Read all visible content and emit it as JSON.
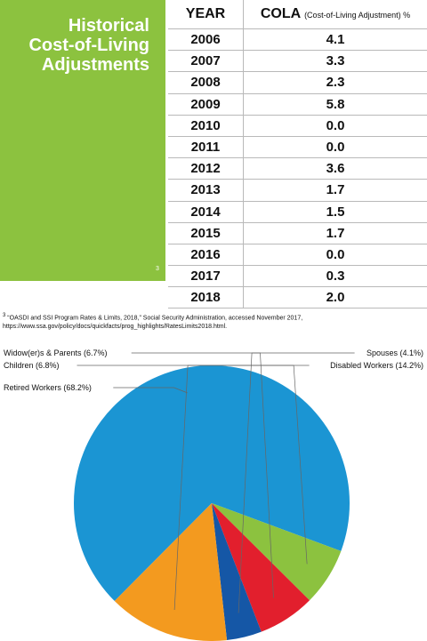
{
  "panel": {
    "title": "Historical\nCost-of-Living\nAdjustments",
    "footnote_marker": "3"
  },
  "table": {
    "headers": {
      "year": "YEAR",
      "cola": "COLA",
      "cola_sub": "(Cost-of-Living Adjustment) %"
    },
    "rows": [
      [
        "2006",
        "4.1"
      ],
      [
        "2007",
        "3.3"
      ],
      [
        "2008",
        "2.3"
      ],
      [
        "2009",
        "5.8"
      ],
      [
        "2010",
        "0.0"
      ],
      [
        "2011",
        "0.0"
      ],
      [
        "2012",
        "3.6"
      ],
      [
        "2013",
        "1.7"
      ],
      [
        "2014",
        "1.5"
      ],
      [
        "2015",
        "1.7"
      ],
      [
        "2016",
        "0.0"
      ],
      [
        "2017",
        "0.3"
      ],
      [
        "2018",
        "2.0"
      ]
    ]
  },
  "footnote": {
    "marker": "3",
    "text": "“OASDI and SSI Program Rates & Limits, 2018,” Social Security Administration, accessed November 2017,",
    "url": "https://www.ssa.gov/policy/docs/quickfacts/prog_highlights/RatesLimits2018.html."
  },
  "colors": {
    "panel_green": "#8cc23f"
  },
  "chart_data": {
    "type": "pie",
    "title": "",
    "slices": [
      {
        "label": "Retired Workers (68.2%)",
        "value": 68.2,
        "color": "#1b95d3",
        "label_side": "left"
      },
      {
        "label": "Children (6.8%)",
        "value": 6.8,
        "color": "#8cc23f",
        "label_side": "left"
      },
      {
        "label": "Widow(er)s & Parents (6.7%)",
        "value": 6.7,
        "color": "#e21f2d",
        "label_side": "left"
      },
      {
        "label": "Spouses (4.1%)",
        "value": 4.1,
        "color": "#1557a6",
        "label_side": "right"
      },
      {
        "label": "Disabled Workers (14.2%)",
        "value": 14.2,
        "color": "#f39a1f",
        "label_side": "right"
      }
    ]
  }
}
